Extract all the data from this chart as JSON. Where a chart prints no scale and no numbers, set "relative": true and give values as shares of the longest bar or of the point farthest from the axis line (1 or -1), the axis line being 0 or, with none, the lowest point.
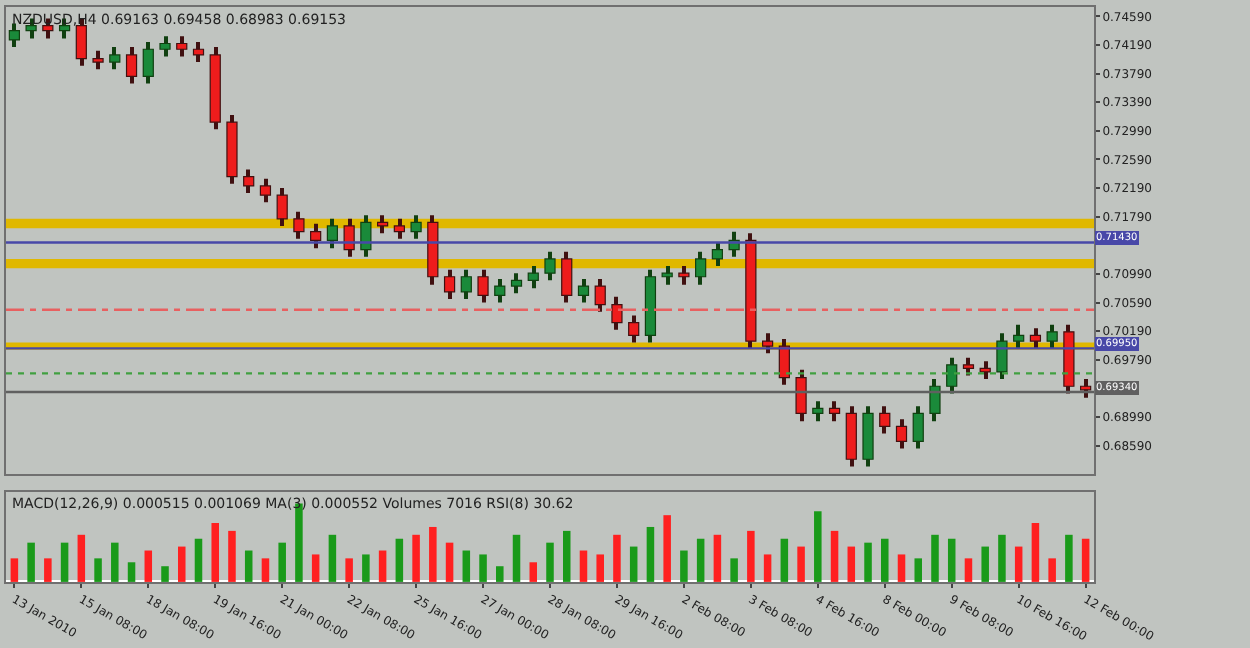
{
  "chart_data": [
    {
      "type": "candlestick",
      "title": "NZDUSD,H4 0.69163 0.69458 0.68983 0.69153",
      "categories": [
        null,
        null,
        null,
        null,
        null,
        null,
        null,
        null,
        null,
        null,
        null,
        null,
        null,
        null,
        null,
        null,
        null,
        null,
        null,
        null,
        null,
        null,
        null,
        null,
        null,
        null,
        null,
        null,
        null,
        null,
        null,
        null,
        null,
        null,
        null,
        null,
        null,
        null,
        null,
        null,
        null,
        null,
        null,
        null,
        null,
        null,
        null,
        null,
        null,
        null,
        null,
        null,
        null,
        null,
        null,
        null,
        null,
        null,
        null,
        null,
        null,
        null,
        null,
        null,
        null
      ],
      "ohlc": [
        [
          0.7426,
          0.7449,
          0.7416,
          0.7439
        ],
        [
          0.7439,
          0.7456,
          0.7428,
          0.7446
        ],
        [
          0.7446,
          0.7456,
          0.7428,
          0.7439
        ],
        [
          0.7439,
          0.7456,
          0.7428,
          0.7446
        ],
        [
          0.7446,
          0.7456,
          0.739,
          0.74
        ],
        [
          0.74,
          0.7411,
          0.7385,
          0.7395
        ],
        [
          0.7395,
          0.7416,
          0.7385,
          0.7405
        ],
        [
          0.7405,
          0.7416,
          0.7365,
          0.7375
        ],
        [
          0.7375,
          0.7423,
          0.7365,
          0.7413
        ],
        [
          0.7413,
          0.7431,
          0.7403,
          0.7421
        ],
        [
          0.7421,
          0.7431,
          0.7403,
          0.7413
        ],
        [
          0.7413,
          0.7423,
          0.7395,
          0.7405
        ],
        [
          0.7405,
          0.7416,
          0.7301,
          0.7311
        ],
        [
          0.7311,
          0.7321,
          0.7225,
          0.7235
        ],
        [
          0.7235,
          0.7245,
          0.7212,
          0.7222
        ],
        [
          0.7222,
          0.7232,
          0.7199,
          0.7209
        ],
        [
          0.7209,
          0.7219,
          0.7166,
          0.7176
        ],
        [
          0.7176,
          0.7186,
          0.7148,
          0.7158
        ],
        [
          0.7158,
          0.7169,
          0.7135,
          0.7146
        ],
        [
          0.7146,
          0.7176,
          0.7135,
          0.7166
        ],
        [
          0.7166,
          0.7176,
          0.7123,
          0.7133
        ],
        [
          0.7133,
          0.7181,
          0.7123,
          0.7171
        ],
        [
          0.7171,
          0.7181,
          0.7156,
          0.7166
        ],
        [
          0.7166,
          0.7176,
          0.7148,
          0.7158
        ],
        [
          0.7158,
          0.7181,
          0.7148,
          0.7171
        ],
        [
          0.7171,
          0.7181,
          0.7084,
          0.7095
        ],
        [
          0.7095,
          0.7105,
          0.7064,
          0.7074
        ],
        [
          0.7074,
          0.7105,
          0.7064,
          0.7095
        ],
        [
          0.7095,
          0.7105,
          0.7059,
          0.7069
        ],
        [
          0.7069,
          0.7092,
          0.7059,
          0.7082
        ],
        [
          0.7082,
          0.71,
          0.7072,
          0.709
        ],
        [
          0.709,
          0.711,
          0.7079,
          0.71
        ],
        [
          0.71,
          0.713,
          0.709,
          0.712
        ],
        [
          0.712,
          0.713,
          0.7059,
          0.7069
        ],
        [
          0.7069,
          0.7092,
          0.7059,
          0.7082
        ],
        [
          0.7082,
          0.7092,
          0.7046,
          0.7056
        ],
        [
          0.7056,
          0.7067,
          0.7021,
          0.7031
        ],
        [
          0.7031,
          0.7041,
          0.7003,
          0.7013
        ],
        [
          0.7013,
          0.7105,
          0.7003,
          0.7095
        ],
        [
          0.7095,
          0.711,
          0.7084,
          0.71
        ],
        [
          0.71,
          0.711,
          0.7084,
          0.7095
        ],
        [
          0.7095,
          0.713,
          0.7084,
          0.712
        ],
        [
          0.712,
          0.7143,
          0.711,
          0.7133
        ],
        [
          0.7133,
          0.7158,
          0.7123,
          0.7146
        ],
        [
          0.7146,
          0.7156,
          0.6995,
          0.7005
        ],
        [
          0.7005,
          0.7016,
          0.6988,
          0.6998
        ],
        [
          0.6998,
          0.7008,
          0.6944,
          0.6954
        ],
        [
          0.6954,
          0.6965,
          0.6893,
          0.6904
        ],
        [
          0.6904,
          0.6921,
          0.6893,
          0.6911
        ],
        [
          0.6911,
          0.6921,
          0.6893,
          0.6904
        ],
        [
          0.6904,
          0.6914,
          0.683,
          0.684
        ],
        [
          0.684,
          0.6914,
          0.683,
          0.6904
        ],
        [
          0.6904,
          0.6914,
          0.6876,
          0.6886
        ],
        [
          0.6886,
          0.6896,
          0.6855,
          0.6865
        ],
        [
          0.6865,
          0.6914,
          0.6855,
          0.6904
        ],
        [
          0.6904,
          0.6952,
          0.6893,
          0.6942
        ],
        [
          0.6942,
          0.6982,
          0.6932,
          0.6972
        ],
        [
          0.6972,
          0.6982,
          0.6957,
          0.6967
        ],
        [
          0.6967,
          0.6977,
          0.6952,
          0.6962
        ],
        [
          0.6962,
          0.7016,
          0.6952,
          0.7005
        ],
        [
          0.7005,
          0.7028,
          0.6995,
          0.7013
        ],
        [
          0.7013,
          0.7023,
          0.6995,
          0.7005
        ],
        [
          0.7005,
          0.7028,
          0.6995,
          0.7018
        ],
        [
          0.7018,
          0.7028,
          0.6932,
          0.6942
        ],
        [
          0.6942,
          0.6952,
          0.6926,
          0.6937
        ]
      ],
      "ylim": [
        0.682,
        0.7472
      ],
      "yticks": [
        {
          "value": 0.7459,
          "label": "0.74590"
        },
        {
          "value": 0.7419,
          "label": "0.74190"
        },
        {
          "value": 0.7379,
          "label": "0.73790"
        },
        {
          "value": 0.7339,
          "label": "0.73390"
        },
        {
          "value": 0.7299,
          "label": "0.72990"
        },
        {
          "value": 0.7259,
          "label": "0.72590"
        },
        {
          "value": 0.7219,
          "label": "0.72190"
        },
        {
          "value": 0.7179,
          "label": "0.71790"
        },
        {
          "value": 0.7099,
          "label": "0.70990"
        },
        {
          "value": 0.7059,
          "label": "0.70590"
        },
        {
          "value": 0.7019,
          "label": "0.70190"
        },
        {
          "value": 0.6979,
          "label": "0.69790"
        },
        {
          "value": 0.6899,
          "label": "0.68990"
        },
        {
          "value": 0.6859,
          "label": "0.68590"
        }
      ],
      "bands": [
        {
          "axis": "y",
          "from": 0.7163,
          "to": 0.7176,
          "color": "#e0b800"
        },
        {
          "axis": "y",
          "from": 0.7107,
          "to": 0.712,
          "color": "#e0b800"
        },
        {
          "axis": "y",
          "from": 0.6993,
          "to": 0.7003,
          "color": "#e0b800"
        }
      ],
      "ref_lines": [
        {
          "axis": "y",
          "value": 0.7143,
          "label": "0.71430",
          "color": "#4848a8",
          "line_style": "solid"
        },
        {
          "axis": "y",
          "value": 0.6995,
          "label": "0.69950",
          "color": "#4848a8",
          "line_style": "solid"
        },
        {
          "axis": "y",
          "value": 0.7049,
          "color": "#e86060",
          "line_style": "dashed"
        },
        {
          "axis": "y",
          "value": 0.696,
          "color": "#40a040",
          "line_style": "dotted"
        },
        {
          "axis": "y",
          "value": 0.6934,
          "label": "0.69340",
          "color": "#606060",
          "line_style": "solid"
        }
      ],
      "grid": false,
      "tick_labels": "y"
    },
    {
      "type": "bar",
      "title": "MACD(12,26,9) 0.000515 0.001069 MA(3) 0.000552 Volumes 7016 RSI(8) 30.62",
      "categories": [
        "13 Jan 2010",
        null,
        null,
        null,
        "15 Jan 08:00",
        null,
        null,
        null,
        "18 Jan 08:00",
        null,
        null,
        null,
        "19 Jan 16:00",
        null,
        null,
        null,
        "21 Jan 00:00",
        null,
        null,
        null,
        "22 Jan 08:00",
        null,
        null,
        null,
        "25 Jan 16:00",
        null,
        null,
        null,
        "27 Jan 00:00",
        null,
        null,
        null,
        "28 Jan 08:00",
        null,
        null,
        null,
        "29 Jan 16:00",
        null,
        null,
        null,
        "2 Feb 08:00",
        null,
        null,
        null,
        "3 Feb 08:00",
        null,
        null,
        null,
        "4 Feb 16:00",
        null,
        null,
        null,
        "8 Feb 00:00",
        null,
        null,
        null,
        "9 Feb 08:00",
        null,
        null,
        null,
        "10 Feb 16:00",
        null,
        null,
        null,
        "12 Feb 00:00"
      ],
      "values": [
        0.3,
        0.5,
        0.3,
        0.5,
        0.6,
        0.3,
        0.5,
        0.25,
        0.4,
        0.2,
        0.45,
        0.55,
        0.75,
        0.65,
        0.4,
        0.3,
        0.5,
        1.0,
        0.35,
        0.6,
        0.3,
        0.35,
        0.4,
        0.55,
        0.6,
        0.7,
        0.5,
        0.4,
        0.35,
        0.2,
        0.6,
        0.25,
        0.5,
        0.65,
        0.4,
        0.35,
        0.6,
        0.45,
        0.7,
        0.85,
        0.4,
        0.55,
        0.6,
        0.3,
        0.65,
        0.35,
        0.55,
        0.45,
        0.9,
        0.65,
        0.45,
        0.5,
        0.55,
        0.35,
        0.3,
        0.6,
        0.55,
        0.3,
        0.45,
        0.6,
        0.45,
        0.75,
        0.3,
        0.6,
        0.55
      ],
      "colors": [
        "#ff2020",
        "#1a9a1a",
        "#ff2020",
        "#1a9a1a",
        "#ff2020",
        "#1a9a1a",
        "#1a9a1a",
        "#1a9a1a",
        "#ff2020",
        "#1a9a1a",
        "#ff2020",
        "#1a9a1a",
        "#ff2020",
        "#ff2020",
        "#1a9a1a",
        "#ff2020",
        "#1a9a1a",
        "#1a9a1a",
        "#ff2020",
        "#1a9a1a",
        "#ff2020",
        "#1a9a1a",
        "#ff2020",
        "#1a9a1a",
        "#ff2020",
        "#ff2020",
        "#ff2020",
        "#1a9a1a",
        "#1a9a1a",
        "#1a9a1a",
        "#1a9a1a",
        "#ff2020",
        "#1a9a1a",
        "#1a9a1a",
        "#ff2020",
        "#ff2020",
        "#ff2020",
        "#1a9a1a",
        "#1a9a1a",
        "#ff2020",
        "#1a9a1a",
        "#1a9a1a",
        "#ff2020",
        "#1a9a1a",
        "#ff2020",
        "#ff2020",
        "#1a9a1a",
        "#ff2020",
        "#1a9a1a",
        "#ff2020",
        "#ff2020",
        "#1a9a1a",
        "#1a9a1a",
        "#ff2020",
        "#1a9a1a",
        "#1a9a1a",
        "#1a9a1a",
        "#ff2020",
        "#1a9a1a",
        "#1a9a1a",
        "#ff2020",
        "#ff2020",
        "#ff2020",
        "#1a9a1a",
        "#ff2020"
      ],
      "relative": true,
      "grid": false
    }
  ]
}
